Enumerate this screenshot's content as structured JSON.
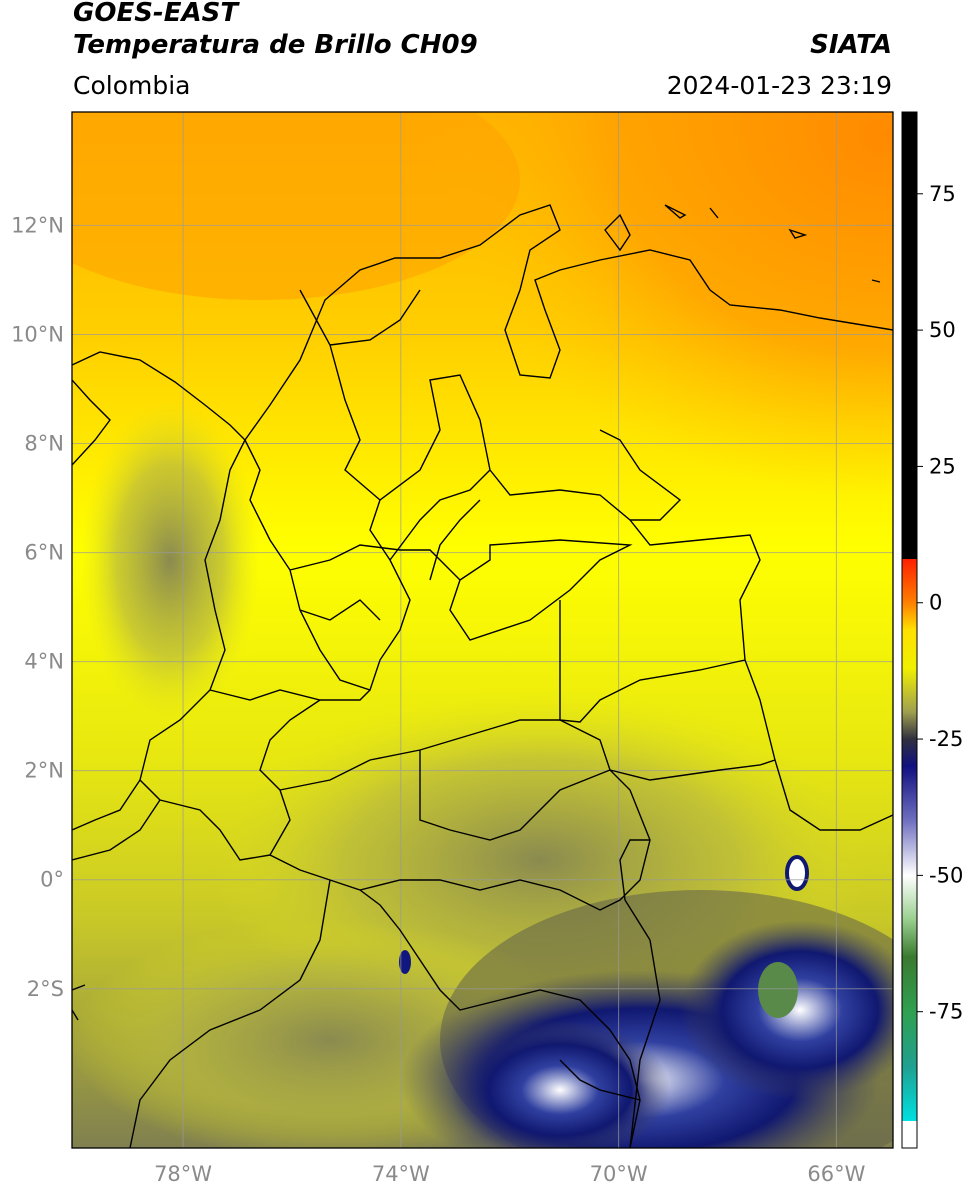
{
  "header": {
    "satellite": "GOES-EAST",
    "product": "Temperatura de Brillo CH09",
    "region": "Colombia",
    "agency": "SIATA",
    "datetime": "2024-01-23 23:19"
  },
  "map": {
    "lat_range": [
      -4.92,
      14.08
    ],
    "lon_range": [
      -80.04,
      -64.96
    ],
    "lat_ticks": [
      {
        "value": 12,
        "label": "12°N"
      },
      {
        "value": 10,
        "label": "10°N"
      },
      {
        "value": 8,
        "label": "8°N"
      },
      {
        "value": 6,
        "label": "6°N"
      },
      {
        "value": 4,
        "label": "4°N"
      },
      {
        "value": 2,
        "label": "2°N"
      },
      {
        "value": 0,
        "label": "0°"
      },
      {
        "value": -2,
        "label": "2°S"
      }
    ],
    "lon_ticks": [
      {
        "value": -78,
        "label": "78°W"
      },
      {
        "value": -74,
        "label": "74°W"
      },
      {
        "value": -70,
        "label": "70°W"
      },
      {
        "value": -66,
        "label": "66°W"
      }
    ],
    "grid": true
  },
  "colorbar": {
    "range": [
      -100,
      90
    ],
    "ticks": [
      {
        "value": 75,
        "label": "75"
      },
      {
        "value": 50,
        "label": "50"
      },
      {
        "value": 25,
        "label": "25"
      },
      {
        "value": 0,
        "label": "0"
      },
      {
        "value": -25,
        "label": "-25"
      },
      {
        "value": -50,
        "label": "-50"
      },
      {
        "value": -75,
        "label": "-75"
      }
    ],
    "stops": [
      {
        "value": -100,
        "color": "#ffffff"
      },
      {
        "value": -95,
        "color": "#ffffff"
      },
      {
        "value": -95,
        "color": "#00e0e0"
      },
      {
        "value": -85,
        "color": "#20a090"
      },
      {
        "value": -75,
        "color": "#30a050"
      },
      {
        "value": -65,
        "color": "#3a7a30"
      },
      {
        "value": -58,
        "color": "#9ad090"
      },
      {
        "value": -50,
        "color": "#ffffff"
      },
      {
        "value": -40,
        "color": "#7070c0"
      },
      {
        "value": -30,
        "color": "#101080"
      },
      {
        "value": -25,
        "color": "#303040"
      },
      {
        "value": -20,
        "color": "#a0a050"
      },
      {
        "value": -12,
        "color": "#f0f000"
      },
      {
        "value": -5,
        "color": "#ffe000"
      },
      {
        "value": 0,
        "color": "#ff8000"
      },
      {
        "value": 8,
        "color": "#ff2000"
      },
      {
        "value": 8,
        "color": "#000000"
      },
      {
        "value": 90,
        "color": "#000000"
      }
    ]
  }
}
